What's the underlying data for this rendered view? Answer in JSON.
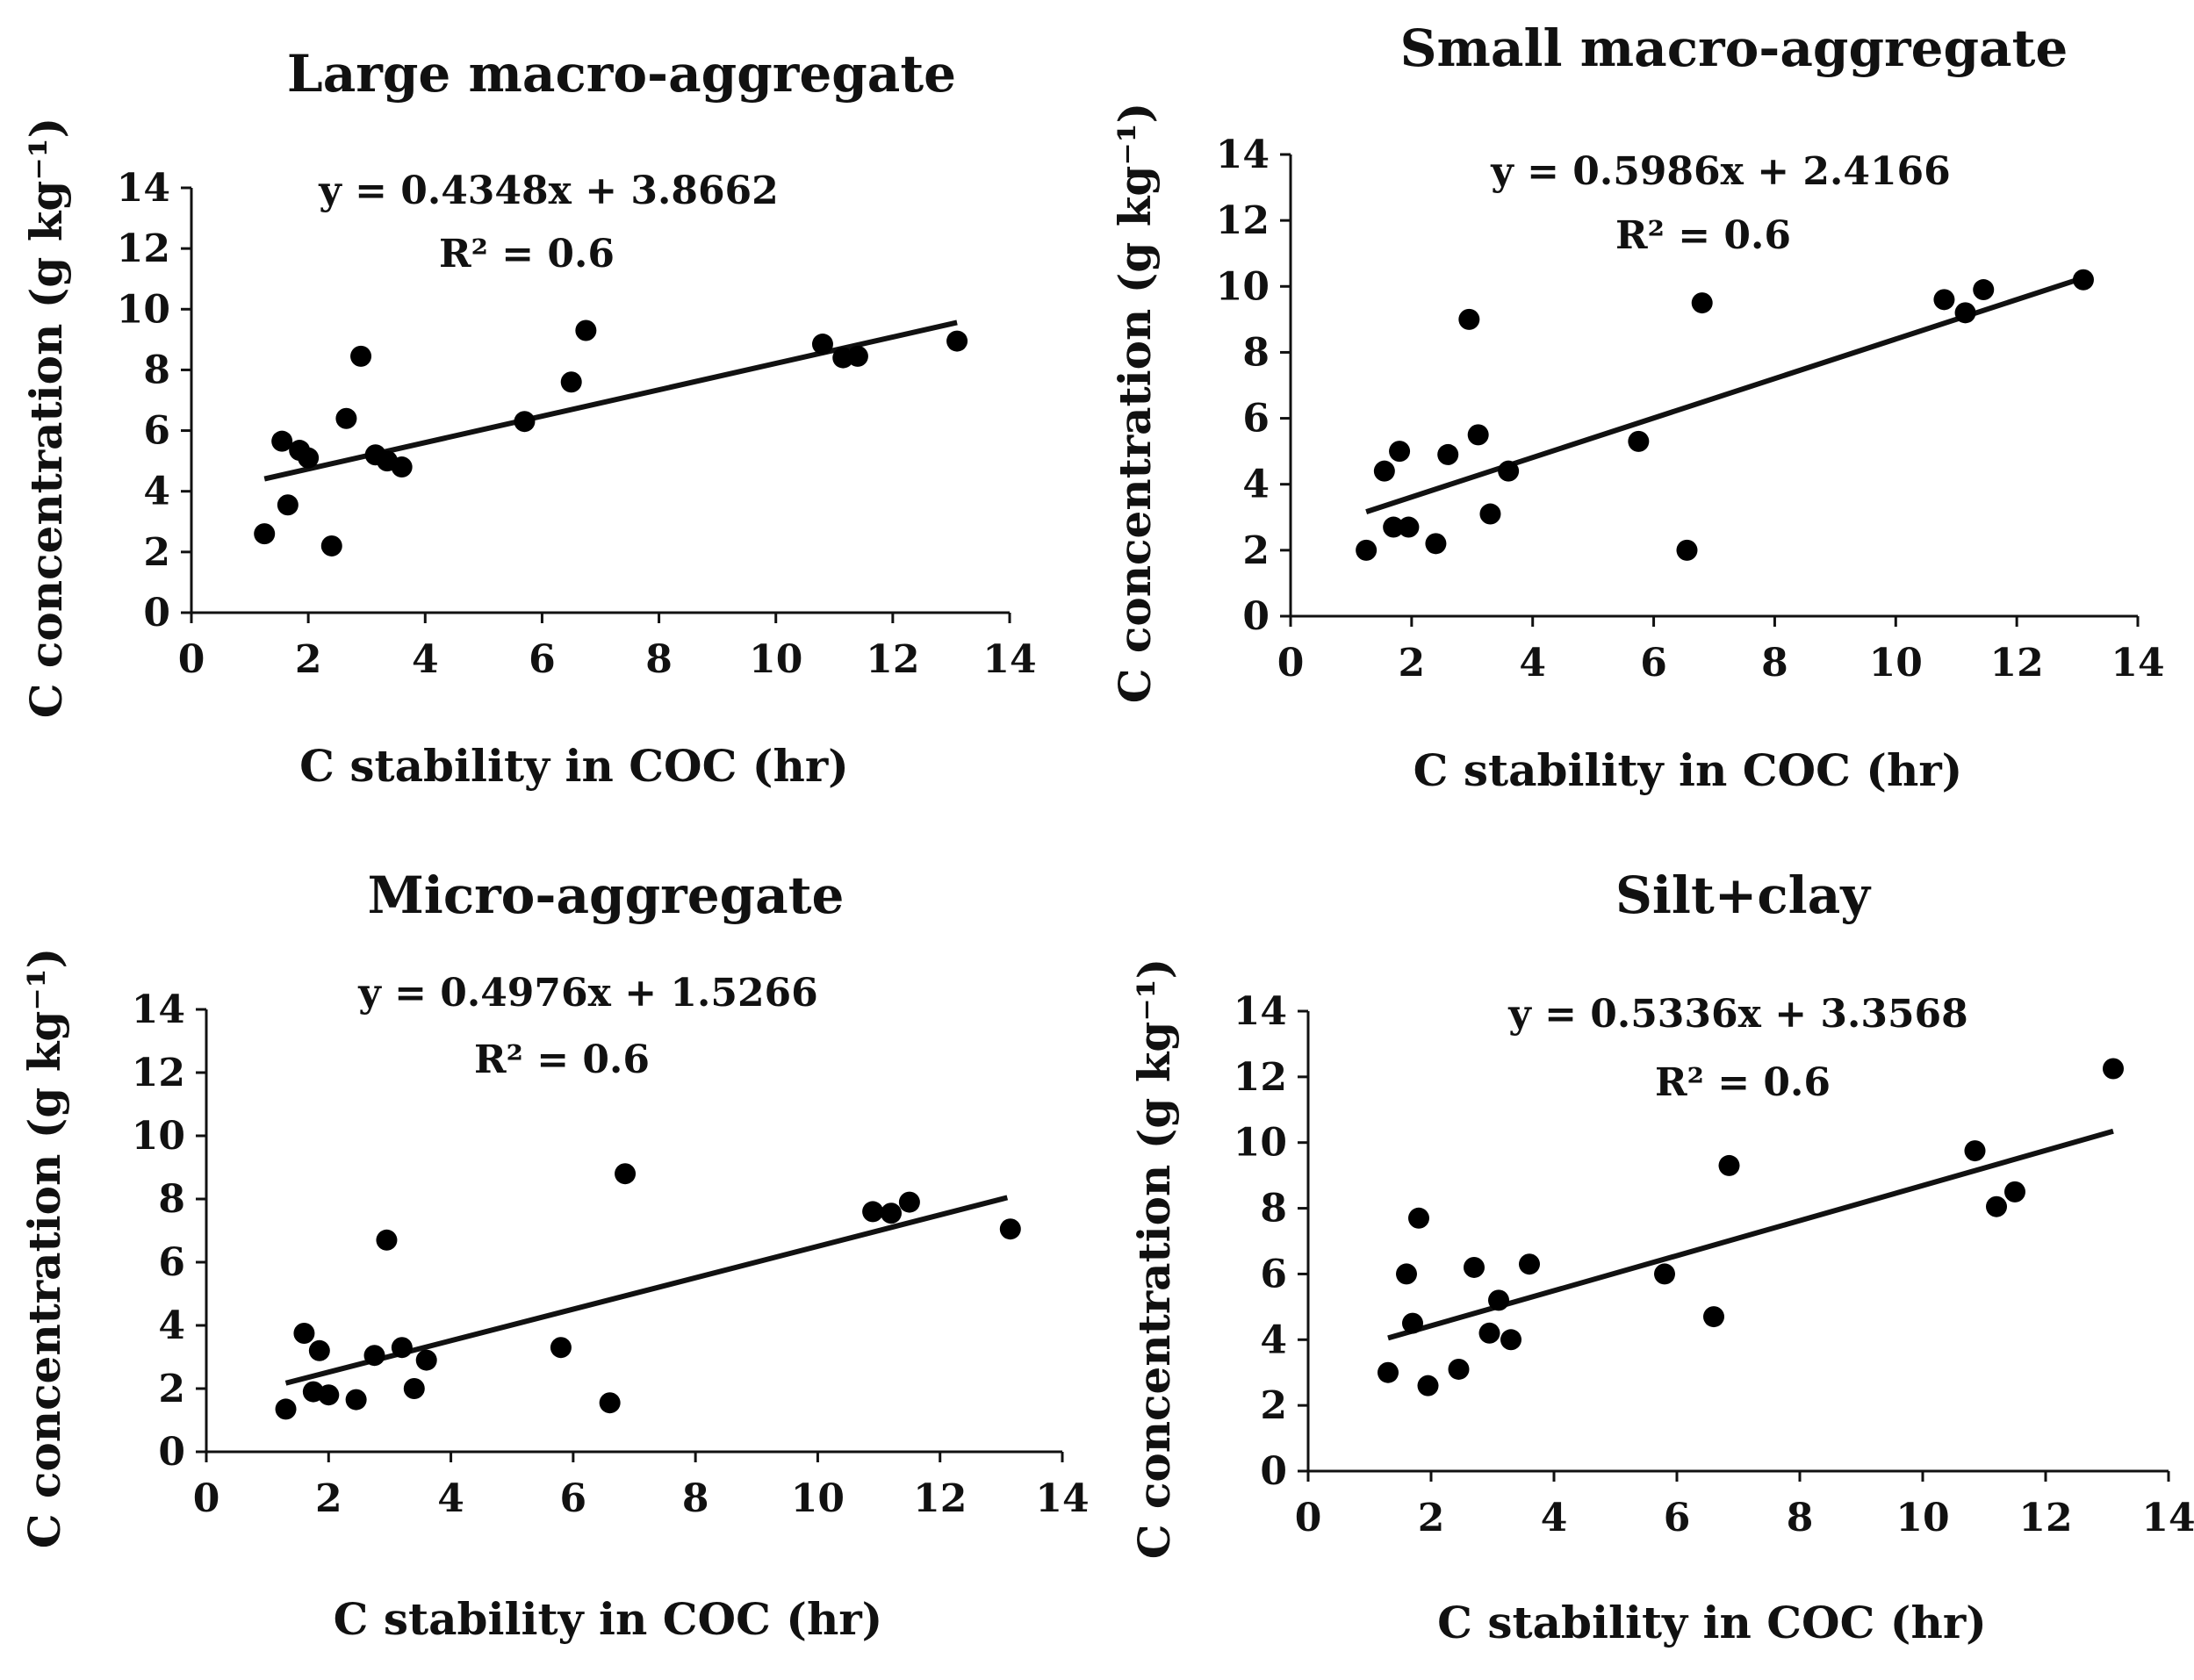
{
  "figure": {
    "panels": [
      "Large macro-aggregate",
      "Small macro-aggregate",
      "Micro-aggregate",
      "Silt+clay"
    ]
  },
  "chart_data": [
    {
      "type": "scatter",
      "title": "Large macro-aggregate",
      "xlabel": "C stability in COC (hr)",
      "ylabel": "C concentration (g kg⁻¹)",
      "xlim": [
        0,
        14
      ],
      "ylim": [
        0,
        14
      ],
      "xticks": [
        "0",
        "2",
        "4",
        "6",
        "8",
        "10",
        "12",
        "14"
      ],
      "yticks": [
        "0",
        "2",
        "4",
        "6",
        "8",
        "10",
        "12",
        "14"
      ],
      "equation": "y = 0.4348x + 3.8662",
      "r2": "R² = 0.6",
      "trendline": {
        "slope": 0.4348,
        "intercept": 3.8662,
        "x_range": [
          1.25,
          13.1
        ]
      },
      "points": [
        [
          1.25,
          2.6
        ],
        [
          1.55,
          5.65
        ],
        [
          1.65,
          3.55
        ],
        [
          1.85,
          5.35
        ],
        [
          2.0,
          5.1
        ],
        [
          2.4,
          2.2
        ],
        [
          2.65,
          6.4
        ],
        [
          2.9,
          8.45
        ],
        [
          3.15,
          5.2
        ],
        [
          3.35,
          5.0
        ],
        [
          3.6,
          4.8
        ],
        [
          5.7,
          6.3
        ],
        [
          6.5,
          7.6
        ],
        [
          6.75,
          9.3
        ],
        [
          10.8,
          8.85
        ],
        [
          11.15,
          8.4
        ],
        [
          11.4,
          8.45
        ],
        [
          13.1,
          8.95
        ]
      ]
    },
    {
      "type": "scatter",
      "title": "Small macro-aggregate",
      "xlabel": "C stability in COC (hr)",
      "ylabel": "C concentration (g kg⁻¹)",
      "xlim": [
        0,
        14
      ],
      "ylim": [
        0,
        14
      ],
      "xticks": [
        "0",
        "2",
        "4",
        "6",
        "8",
        "10",
        "12",
        "14"
      ],
      "yticks": [
        "0",
        "2",
        "4",
        "6",
        "8",
        "10",
        "12",
        "14"
      ],
      "equation": "y = 0.5986x + 2.4166",
      "r2": "R² = 0.6",
      "trendline": {
        "slope": 0.5986,
        "intercept": 2.4166,
        "x_range": [
          1.25,
          13.1
        ]
      },
      "points": [
        [
          1.25,
          2.0
        ],
        [
          1.55,
          4.4
        ],
        [
          1.7,
          2.7
        ],
        [
          1.8,
          5.0
        ],
        [
          1.95,
          2.7
        ],
        [
          2.4,
          2.2
        ],
        [
          2.6,
          4.9
        ],
        [
          2.95,
          9.0
        ],
        [
          3.1,
          5.5
        ],
        [
          3.3,
          3.1
        ],
        [
          3.6,
          4.4
        ],
        [
          5.75,
          5.3
        ],
        [
          6.55,
          2.0
        ],
        [
          6.8,
          9.5
        ],
        [
          10.8,
          9.6
        ],
        [
          11.15,
          9.2
        ],
        [
          11.45,
          9.9
        ],
        [
          13.1,
          10.2
        ]
      ]
    },
    {
      "type": "scatter",
      "title": "Micro-aggregate",
      "xlabel": "C stability in COC (hr)",
      "ylabel": "C concentration (g kg⁻¹)",
      "xlim": [
        0,
        14
      ],
      "ylim": [
        0,
        14
      ],
      "xticks": [
        "0",
        "2",
        "4",
        "6",
        "8",
        "10",
        "12",
        "14"
      ],
      "yticks": [
        "0",
        "2",
        "4",
        "6",
        "8",
        "10",
        "12",
        "14"
      ],
      "equation": "y = 0.4976x + 1.5266",
      "r2": "R² = 0.6",
      "trendline": {
        "slope": 0.4976,
        "intercept": 1.5266,
        "x_range": [
          1.3,
          13.1
        ]
      },
      "points": [
        [
          1.3,
          1.35
        ],
        [
          1.6,
          3.75
        ],
        [
          1.75,
          1.9
        ],
        [
          1.85,
          3.2
        ],
        [
          2.0,
          1.8
        ],
        [
          2.45,
          1.65
        ],
        [
          2.75,
          3.05
        ],
        [
          2.95,
          6.7
        ],
        [
          3.2,
          3.3
        ],
        [
          3.4,
          2.0
        ],
        [
          3.6,
          2.9
        ],
        [
          5.8,
          3.3
        ],
        [
          6.6,
          1.55
        ],
        [
          6.85,
          8.8
        ],
        [
          10.9,
          7.6
        ],
        [
          11.2,
          7.55
        ],
        [
          11.5,
          7.9
        ],
        [
          13.15,
          7.05
        ]
      ]
    },
    {
      "type": "scatter",
      "title": "Silt+clay",
      "xlabel": "C stability in COC (hr)",
      "ylabel": "C concentration (g kg⁻¹)",
      "xlim": [
        0,
        14
      ],
      "ylim": [
        0,
        14
      ],
      "xticks": [
        "0",
        "2",
        "4",
        "6",
        "8",
        "10",
        "12",
        "14"
      ],
      "yticks": [
        "0",
        "2",
        "4",
        "6",
        "8",
        "10",
        "12",
        "14"
      ],
      "equation": "y = 0.5336x + 3.3568",
      "r2": "R² = 0.6",
      "trendline": {
        "slope": 0.5336,
        "intercept": 3.3568,
        "x_range": [
          1.3,
          13.1
        ]
      },
      "points": [
        [
          1.3,
          3.0
        ],
        [
          1.6,
          6.0
        ],
        [
          1.7,
          4.5
        ],
        [
          1.8,
          7.7
        ],
        [
          1.95,
          2.6
        ],
        [
          2.45,
          3.1
        ],
        [
          2.7,
          6.2
        ],
        [
          2.95,
          4.2
        ],
        [
          3.1,
          5.2
        ],
        [
          3.3,
          4.0
        ],
        [
          3.6,
          6.3
        ],
        [
          5.8,
          6.0
        ],
        [
          6.6,
          4.7
        ],
        [
          6.85,
          9.3
        ],
        [
          10.85,
          9.75
        ],
        [
          11.2,
          8.05
        ],
        [
          11.5,
          8.5
        ],
        [
          13.1,
          12.25
        ]
      ]
    }
  ]
}
